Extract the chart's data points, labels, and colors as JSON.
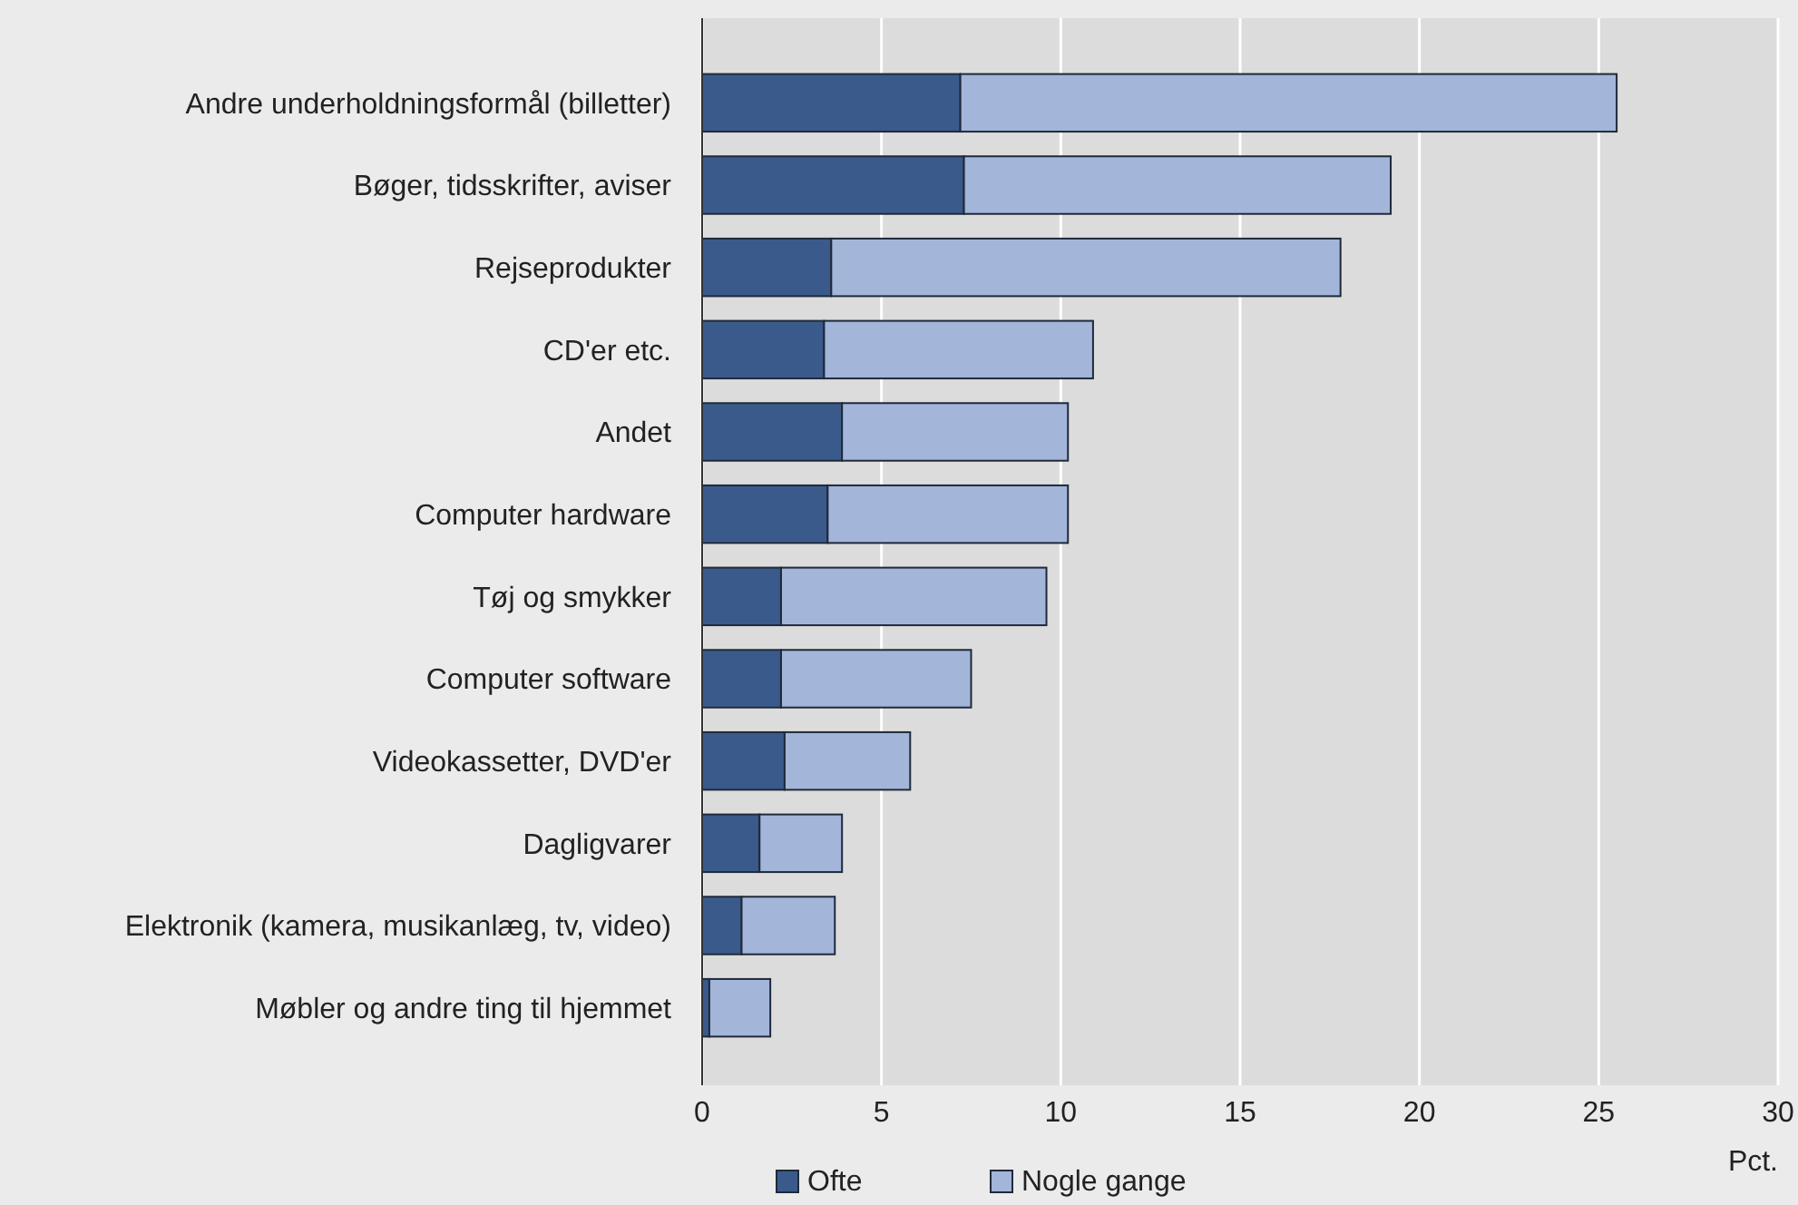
{
  "chart_data": {
    "type": "bar",
    "orientation": "horizontal",
    "stacked": true,
    "categories": [
      "Andre underholdningsformål (billetter)",
      "Bøger, tidsskrifter, aviser",
      "Rejseprodukter",
      "CD'er etc.",
      "Andet",
      "Computer hardware",
      "Tøj og smykker",
      "Computer software",
      "Videokassetter, DVD'er",
      "Dagligvarer",
      "Elektronik (kamera, musikanlæg, tv, video)",
      "Møbler og andre ting til hjemmet"
    ],
    "series": [
      {
        "name": "Ofte",
        "color": "#3b5a8c",
        "values": [
          7.2,
          7.3,
          3.6,
          3.4,
          3.9,
          3.5,
          2.2,
          2.2,
          2.3,
          1.6,
          1.1,
          0.2
        ]
      },
      {
        "name": "Nogle gange",
        "color": "#a3b5d9",
        "values": [
          18.3,
          11.9,
          14.2,
          7.5,
          6.3,
          6.7,
          7.4,
          5.3,
          3.5,
          2.3,
          2.6,
          1.7
        ]
      }
    ],
    "xlim": [
      0,
      30
    ],
    "xticks": [
      0,
      5,
      10,
      15,
      20,
      25,
      30
    ],
    "xlabel": "Pct.",
    "grid": "x",
    "legend": "bottom"
  }
}
